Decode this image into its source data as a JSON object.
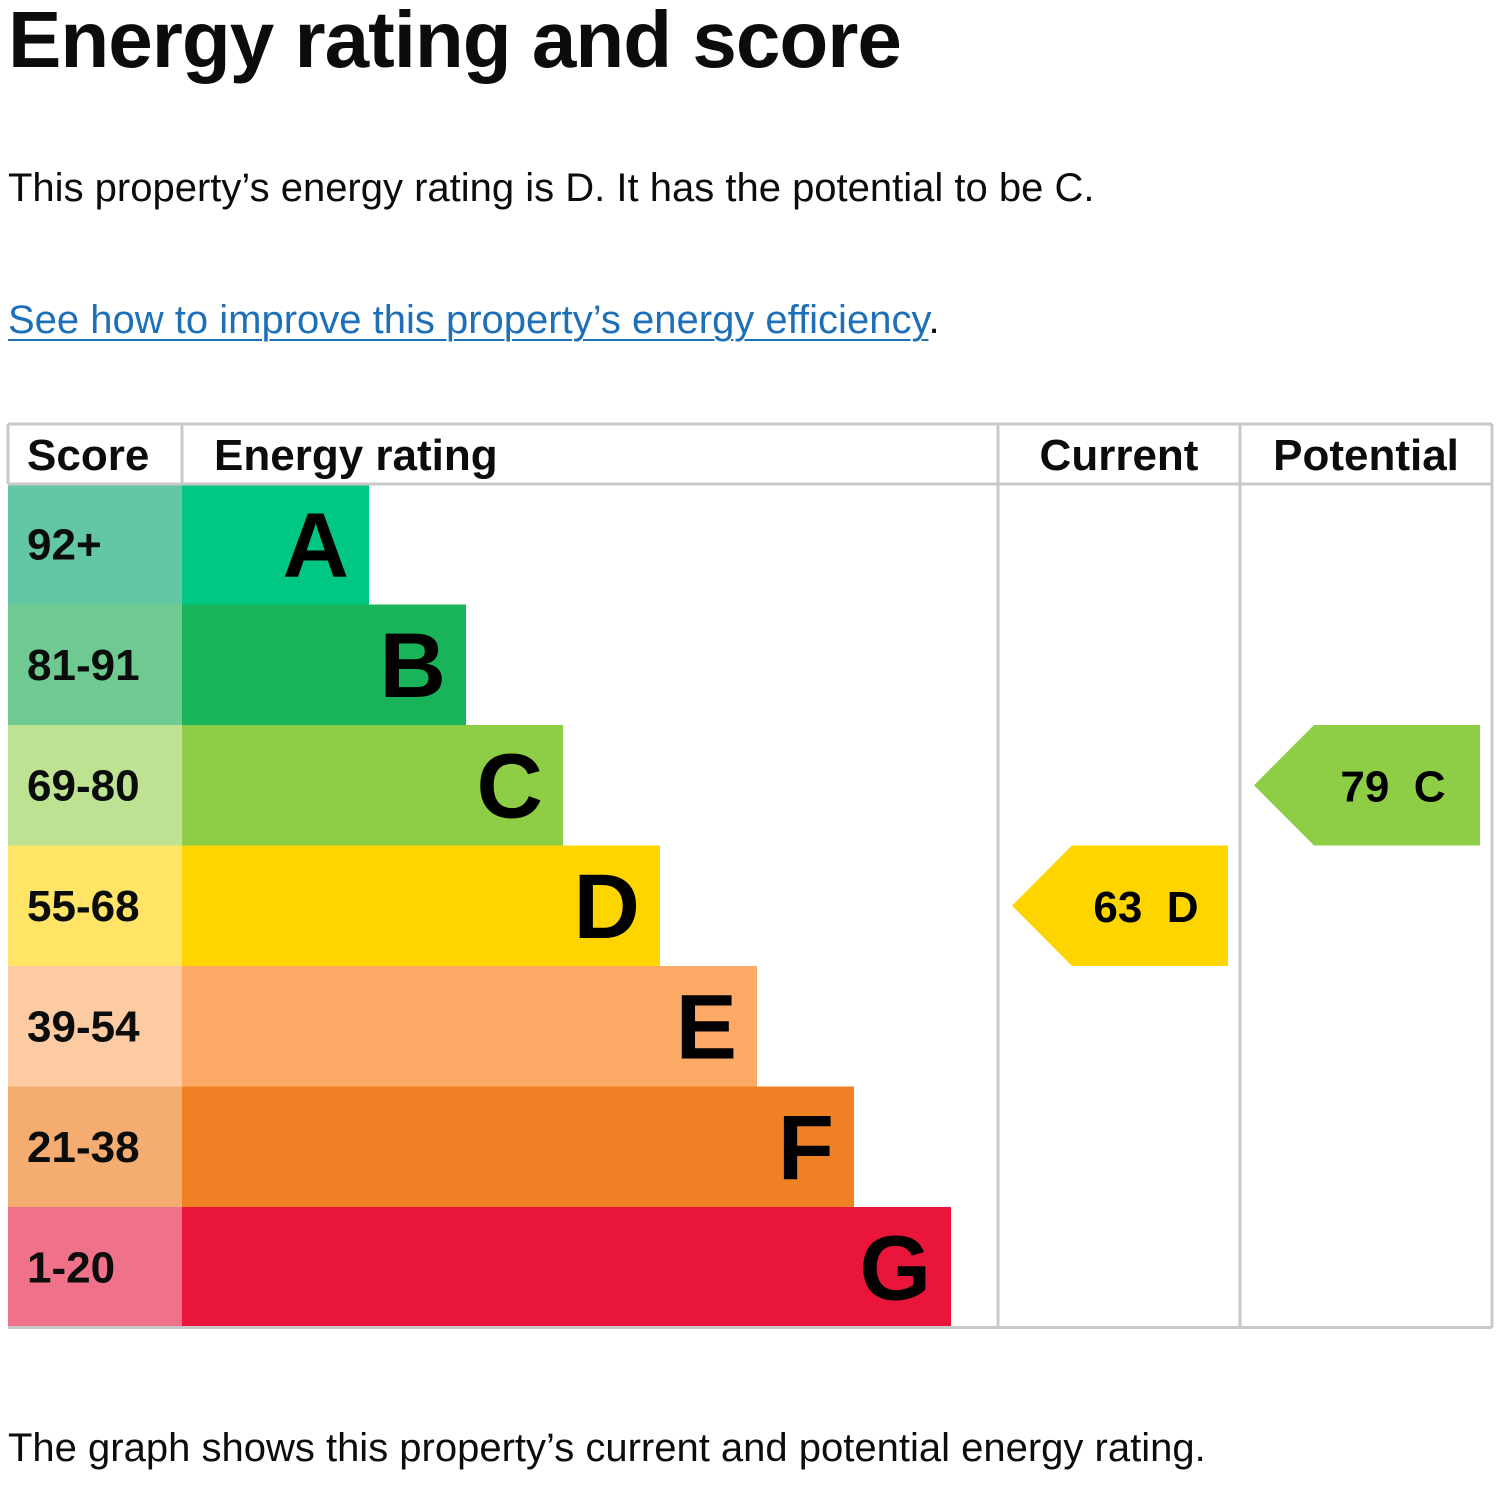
{
  "page": {
    "title": "Energy rating and score",
    "summary": "This property’s energy rating is D. It has the potential to be C.",
    "improve_link": "See how to improve this property’s energy efficiency",
    "improve_suffix": ".",
    "footer": "The graph shows this property’s current and potential energy rating."
  },
  "chart_data": {
    "type": "bar",
    "title": "",
    "columns": [
      "Score",
      "Energy rating",
      "Current",
      "Potential"
    ],
    "bands": [
      {
        "score": "92+",
        "rating": "A",
        "bar_color": "#00c781",
        "score_color": "#64c7a4"
      },
      {
        "score": "81-91",
        "rating": "B",
        "bar_color": "#19b459",
        "score_color": "#6fca91"
      },
      {
        "score": "69-80",
        "rating": "C",
        "bar_color": "#8dce46",
        "score_color": "#bde292"
      },
      {
        "score": "55-68",
        "rating": "D",
        "bar_color": "#ffd500",
        "score_color": "#ffe466"
      },
      {
        "score": "39-54",
        "rating": "E",
        "bar_color": "#fcaa65",
        "score_color": "#fdcba2"
      },
      {
        "score": "21-38",
        "rating": "F",
        "bar_color": "#ef8023",
        "score_color": "#f4ac70"
      },
      {
        "score": "1-20",
        "rating": "G",
        "bar_color": "#e9153b",
        "score_color": "#f0728a"
      }
    ],
    "current": {
      "score": 63,
      "rating": "D",
      "label": "63  D"
    },
    "potential": {
      "score": 79,
      "rating": "C",
      "label": "79  C"
    }
  }
}
